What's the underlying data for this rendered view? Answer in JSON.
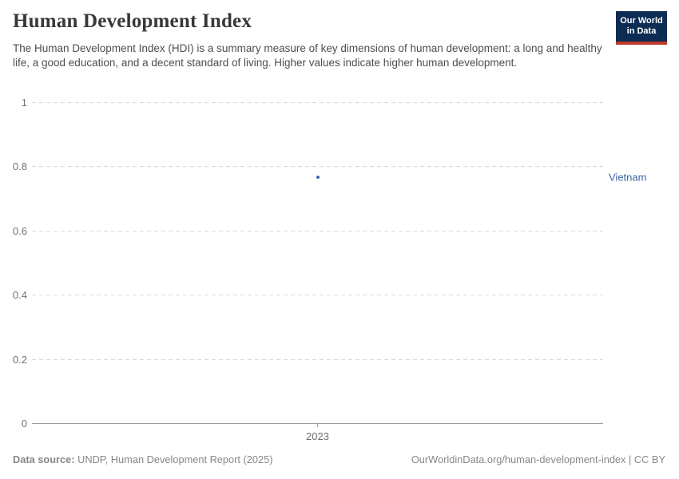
{
  "header": {
    "title": "Human Development Index",
    "subtitle": "The Human Development Index (HDI) is a summary measure of key dimensions of human development: a long and healthy life, a good education, and a decent standard of living. Higher values indicate higher human development.",
    "logo": {
      "line1": "Our World",
      "line2": "in Data",
      "bg_color": "#0d2c53",
      "accent_color": "#c0392b"
    }
  },
  "chart_data": {
    "type": "scatter",
    "title": "Human Development Index",
    "xlabel": "",
    "ylabel": "",
    "ylim": [
      0,
      1
    ],
    "grid": "horizontal dashed",
    "y_ticks": [
      {
        "value": 1,
        "label": "1"
      },
      {
        "value": 0.8,
        "label": "0.8"
      },
      {
        "value": 0.6,
        "label": "0.6"
      },
      {
        "value": 0.4,
        "label": "0.4"
      },
      {
        "value": 0.2,
        "label": "0.2"
      },
      {
        "value": 0,
        "label": "0"
      }
    ],
    "x_ticks": [
      {
        "value": 2023,
        "label": "2023"
      }
    ],
    "series": [
      {
        "name": "Vietnam",
        "color": "#4063a9",
        "points": [
          {
            "x": 2023,
            "y": 0.766
          }
        ]
      }
    ]
  },
  "footer": {
    "source_label": "Data source:",
    "source_text": " UNDP, Human Development Report (2025)",
    "attribution": "OurWorldinData.org/human-development-index | CC BY"
  }
}
